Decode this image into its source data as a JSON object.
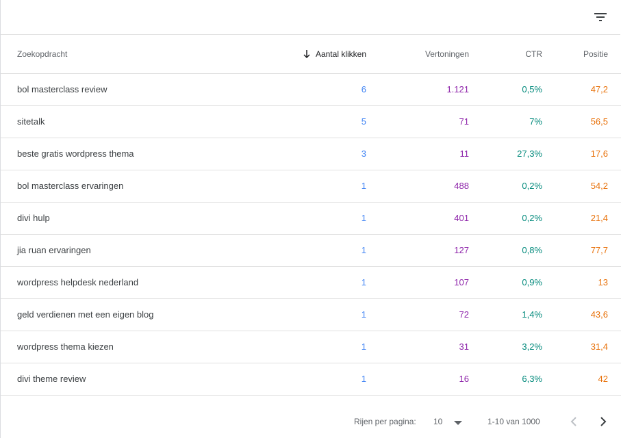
{
  "toolbar": {
    "filter_icon": "filter-icon"
  },
  "columns": {
    "query": "Zoekopdracht",
    "clicks": "Aantal klikken",
    "impressions": "Vertoningen",
    "ctr": "CTR",
    "position": "Positie"
  },
  "colors": {
    "clicks": "#4285f4",
    "impressions": "#8e24aa",
    "ctr": "#00897b",
    "position": "#e8710a"
  },
  "rows": [
    {
      "query": "bol masterclass review",
      "clicks": "6",
      "impressions": "1.121",
      "ctr": "0,5%",
      "position": "47,2"
    },
    {
      "query": "sitetalk",
      "clicks": "5",
      "impressions": "71",
      "ctr": "7%",
      "position": "56,5"
    },
    {
      "query": "beste gratis wordpress thema",
      "clicks": "3",
      "impressions": "11",
      "ctr": "27,3%",
      "position": "17,6"
    },
    {
      "query": "bol masterclass ervaringen",
      "clicks": "1",
      "impressions": "488",
      "ctr": "0,2%",
      "position": "54,2"
    },
    {
      "query": "divi hulp",
      "clicks": "1",
      "impressions": "401",
      "ctr": "0,2%",
      "position": "21,4"
    },
    {
      "query": "jia ruan ervaringen",
      "clicks": "1",
      "impressions": "127",
      "ctr": "0,8%",
      "position": "77,7"
    },
    {
      "query": "wordpress helpdesk nederland",
      "clicks": "1",
      "impressions": "107",
      "ctr": "0,9%",
      "position": "13"
    },
    {
      "query": "geld verdienen met een eigen blog",
      "clicks": "1",
      "impressions": "72",
      "ctr": "1,4%",
      "position": "43,6"
    },
    {
      "query": "wordpress thema kiezen",
      "clicks": "1",
      "impressions": "31",
      "ctr": "3,2%",
      "position": "31,4"
    },
    {
      "query": "divi theme review",
      "clicks": "1",
      "impressions": "16",
      "ctr": "6,3%",
      "position": "42"
    }
  ],
  "pagination": {
    "rows_label": "Rijen per pagina:",
    "rows_value": "10",
    "range": "1-10 van 1000"
  }
}
